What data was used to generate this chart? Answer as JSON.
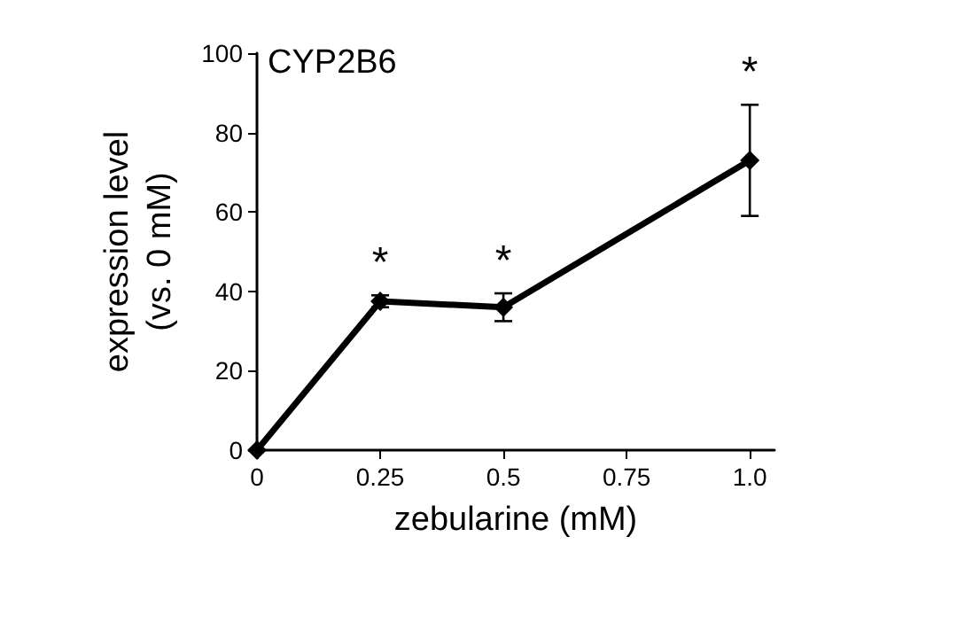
{
  "chart_data": {
    "type": "line",
    "xlabel": "zebularine (mM)",
    "ylabel": "expression level\n(vs. 0 mM)",
    "x": [
      0,
      0.25,
      0.5,
      1.0
    ],
    "series": [
      {
        "color": "#000000",
        "values": [
          0,
          37.5,
          36,
          73
        ],
        "errors": [
          null,
          1.5,
          3.5,
          14
        ]
      }
    ],
    "xlim": [
      0,
      1.05
    ],
    "xticks": [
      0,
      0.25,
      0.5,
      0.75,
      {
        "value": 1,
        "label": "1.0"
      }
    ],
    "ylim": [
      0,
      100
    ],
    "yticks": [
      0,
      20,
      40,
      60,
      80,
      100
    ],
    "annotations": [
      "CYP2B6",
      {
        "text": "*",
        "x": 0.25,
        "y": 37.5
      },
      {
        "text": "*",
        "x": 0.5,
        "y": 36
      },
      {
        "text": "*",
        "x": 1.0,
        "y": 73
      }
    ],
    "marker": "diamond",
    "line_style": "solid",
    "grid": false
  }
}
